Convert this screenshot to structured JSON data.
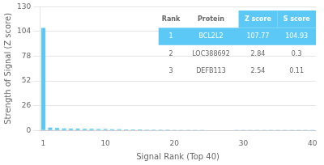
{
  "chart_data": {
    "type": "bar",
    "xlabel": "Signal Rank (Top 40)",
    "ylabel": "Strength of Signal (Z score)",
    "x": [
      1,
      2,
      3,
      4,
      5,
      6,
      7,
      8,
      9,
      10,
      11,
      12,
      13,
      14,
      15,
      16,
      17,
      18,
      19,
      20,
      21,
      22,
      23,
      24,
      25,
      26,
      27,
      28,
      29,
      30,
      31,
      32,
      33,
      34,
      35,
      36,
      37,
      38,
      39,
      40
    ],
    "values": [
      107.77,
      2.84,
      2.54,
      2.1,
      1.9,
      1.8,
      1.7,
      1.6,
      1.5,
      1.4,
      1.3,
      1.2,
      1.1,
      1.0,
      0.95,
      0.9,
      0.85,
      0.8,
      0.75,
      0.7,
      0.65,
      0.6,
      0.55,
      0.5,
      0.45,
      0.4,
      0.35,
      0.3,
      0.25,
      0.2,
      0.18,
      0.16,
      0.14,
      0.12,
      0.1,
      0.08,
      0.06,
      0.04,
      0.02,
      0.01
    ],
    "color": "#5bc8f5",
    "xlim": [
      0.5,
      40.5
    ],
    "xticks": [
      1,
      10,
      20,
      30,
      40
    ],
    "ylim": [
      0,
      130
    ],
    "yticks": [
      0,
      26,
      52,
      78,
      104,
      130
    ],
    "grid": true,
    "table": {
      "headers": [
        "Rank",
        "Protein",
        "Z score",
        "S score"
      ],
      "rows": [
        [
          "1",
          "BCL2L2",
          "107.77",
          "104.93"
        ],
        [
          "2",
          "LOC388692",
          "2.84",
          "0.3"
        ],
        [
          "3",
          "DEFB113",
          "2.54",
          "0.11"
        ]
      ],
      "color": "#5bc8f5"
    }
  }
}
